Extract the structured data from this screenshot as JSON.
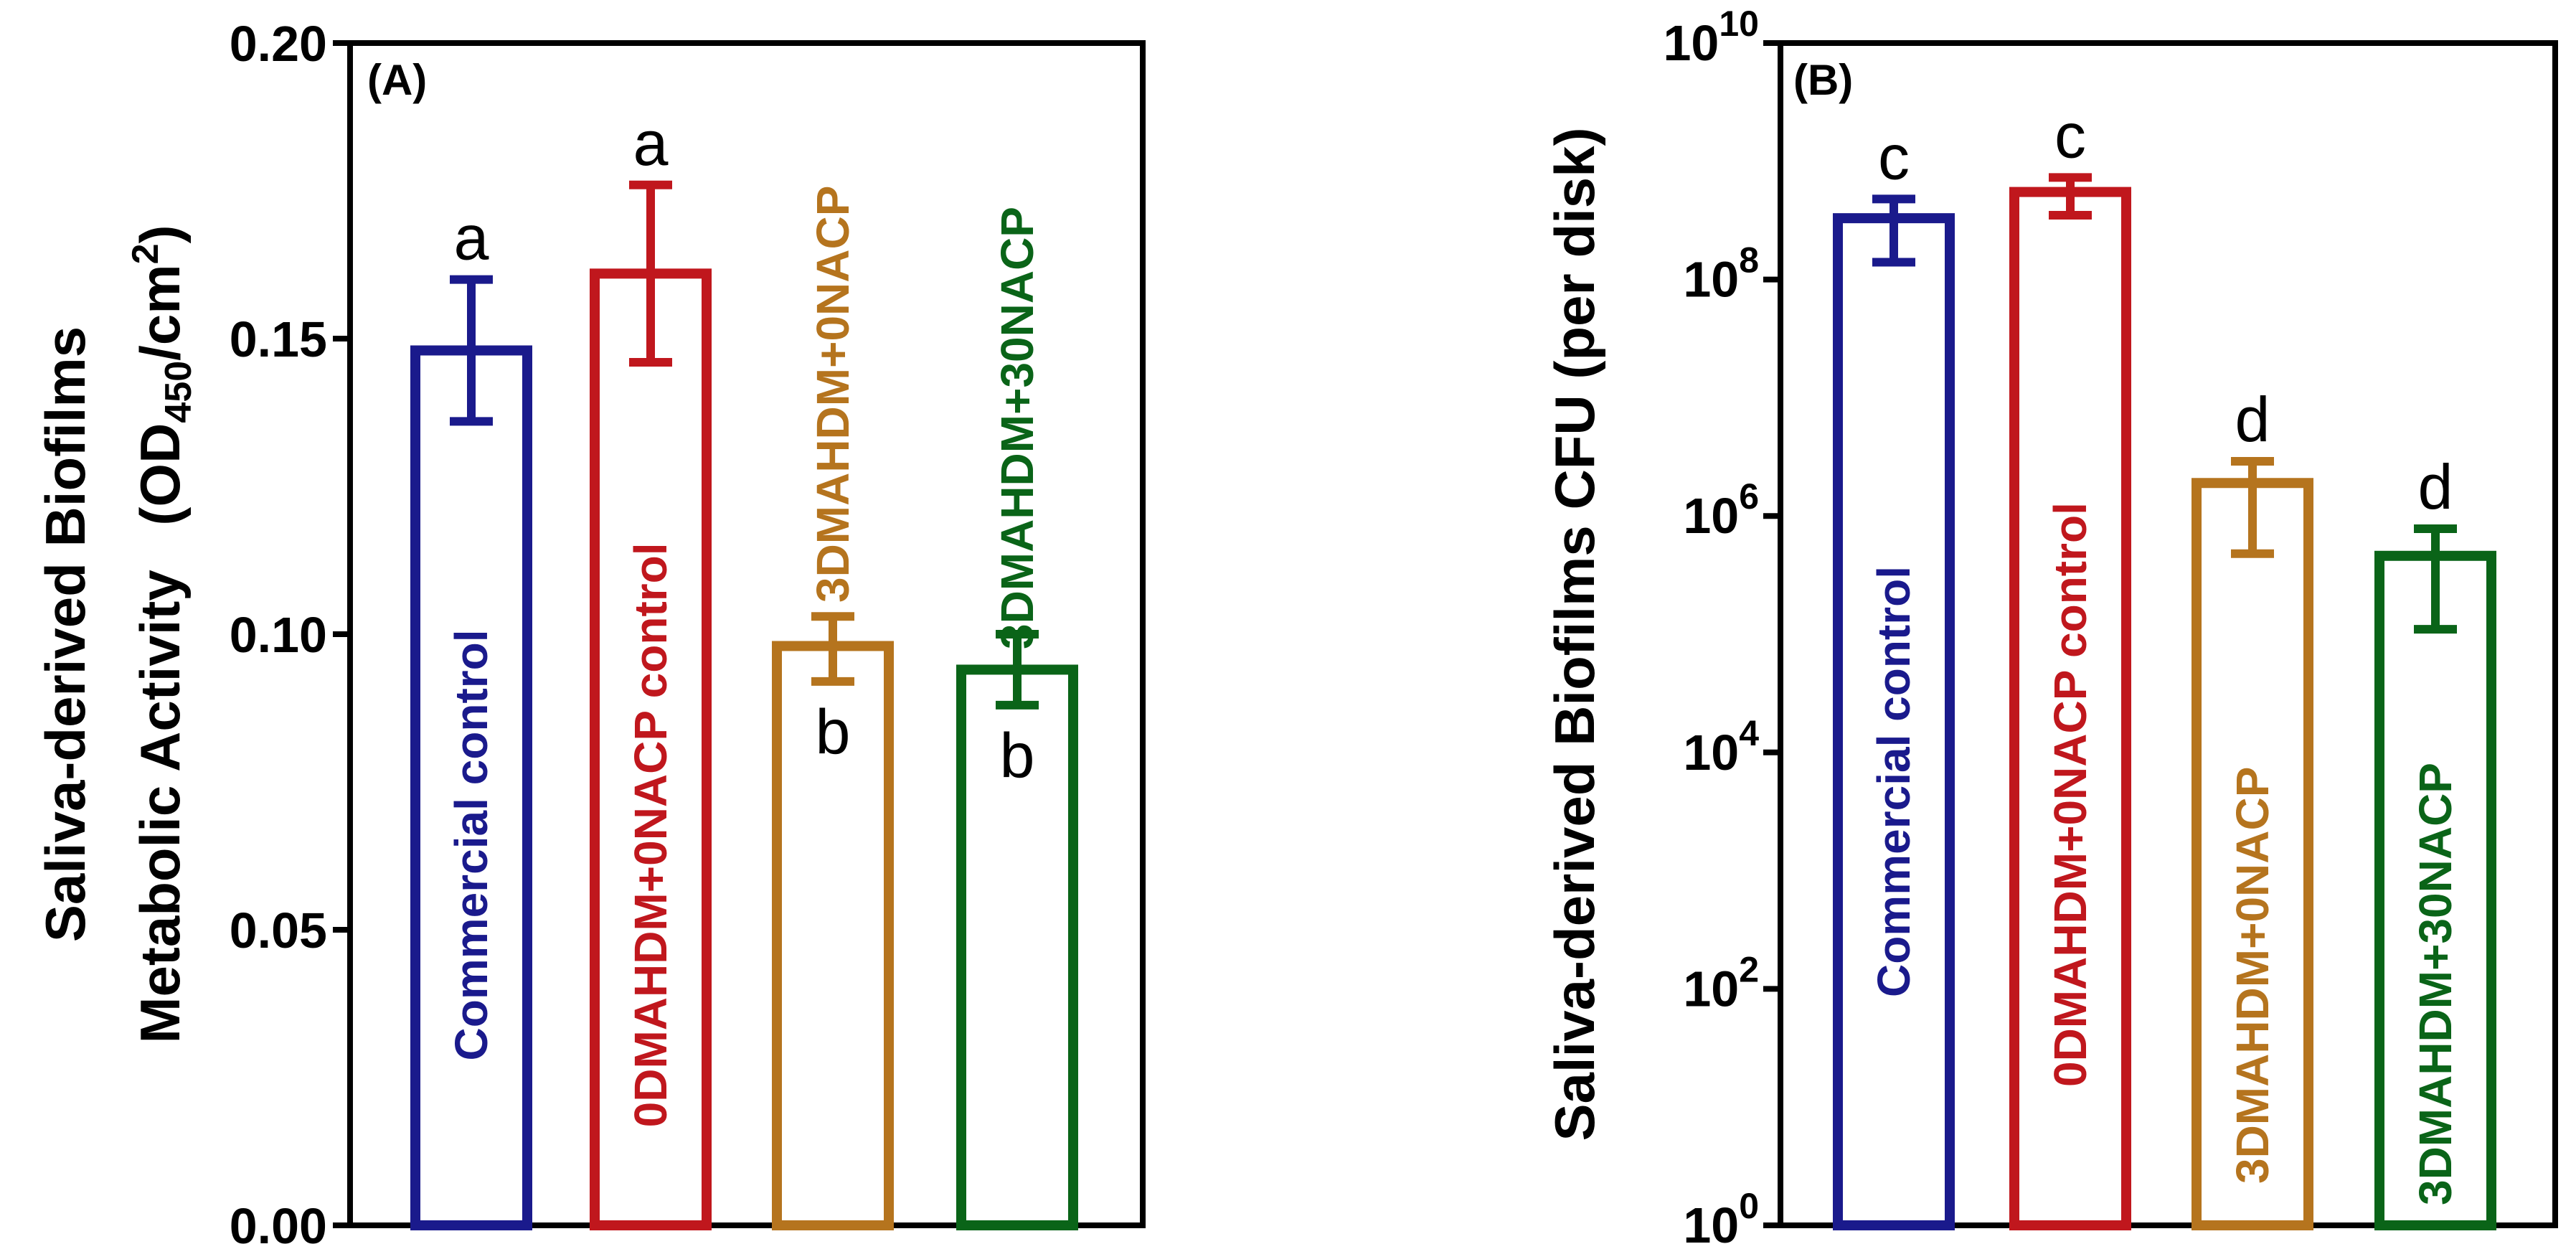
{
  "chart_data": [
    {
      "type": "bar",
      "panel": "(A)",
      "ylabel_line1": "Saliva-derived Biofilms",
      "ylabel_line2": "Metabolic Activity",
      "ylabel_unit_prefix": "(OD",
      "ylabel_unit_sub": "450",
      "ylabel_unit_mid": "/cm",
      "ylabel_unit_sup": "2",
      "ylabel_unit_suffix": ")",
      "ylim": [
        0,
        0.2
      ],
      "yscale": "linear",
      "yticks": [
        0,
        0.05,
        0.1,
        0.15,
        0.2
      ],
      "ytick_labels": [
        "0.00",
        "0.05",
        "0.10",
        "0.15",
        "0.20"
      ],
      "categories": [
        "Commercial control",
        "0DMAHDM+0NACP control",
        "3DMAHDM+0NACP",
        "3DMAHDM+30NACP"
      ],
      "values": [
        0.148,
        0.161,
        0.098,
        0.094
      ],
      "err_low": [
        0.136,
        0.146,
        0.092,
        0.088
      ],
      "err_high": [
        0.16,
        0.176,
        0.103,
        0.1
      ],
      "significance": [
        "a",
        "a",
        "b",
        "b"
      ],
      "colors": [
        "#1a1a8c",
        "#c0171d",
        "#b5741e",
        "#0a6418"
      ]
    },
    {
      "type": "bar",
      "panel": "(B)",
      "ylabel": "Saliva-derived Biofilms CFU (per disk)",
      "yscale": "log",
      "ylim": [
        1,
        10000000000
      ],
      "ytick_base": "10",
      "ytick_exponents": [
        "0",
        "2",
        "4",
        "6",
        "8",
        "10"
      ],
      "categories": [
        "Commercial control",
        "0DMAHDM+0NACP control",
        "3DMAHDM+0NACP",
        "3DMAHDM+30NACP"
      ],
      "values": [
        330000000,
        550000000,
        1900000,
        460000
      ],
      "err_low": [
        140000000,
        350000000,
        480000,
        110000
      ],
      "err_high": [
        480000000,
        730000000,
        2900000,
        780000
      ],
      "significance": [
        "c",
        "c",
        "d",
        "d"
      ],
      "colors": [
        "#1a1a8c",
        "#c0171d",
        "#b5741e",
        "#0a6418"
      ]
    }
  ]
}
